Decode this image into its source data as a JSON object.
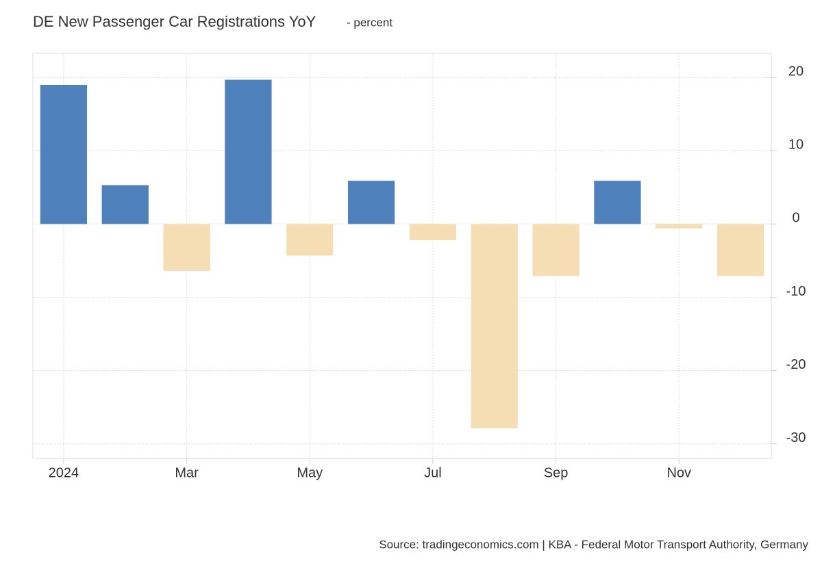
{
  "chart_data": {
    "type": "bar",
    "title": "DE New Passenger Car Registrations YoY",
    "subtitle": "- percent",
    "source": "Source: tradingeconomics.com | KBA - Federal Motor Transport Authority, Germany",
    "categories": [
      "2024",
      null,
      "Mar",
      null,
      "May",
      null,
      "Jul",
      null,
      "Sep",
      null,
      "Nov",
      null
    ],
    "values": [
      19.0,
      5.3,
      -6.4,
      19.7,
      -4.3,
      5.9,
      -2.2,
      -27.9,
      -7.1,
      5.9,
      -0.6,
      -7.1
    ],
    "colors": {
      "positive": "#4f81bd",
      "negative": "#f5deb3"
    },
    "ylim": [
      -32,
      23.3
    ],
    "yticks": [
      -30,
      -20,
      -10,
      0,
      10,
      20
    ],
    "grid": true
  }
}
